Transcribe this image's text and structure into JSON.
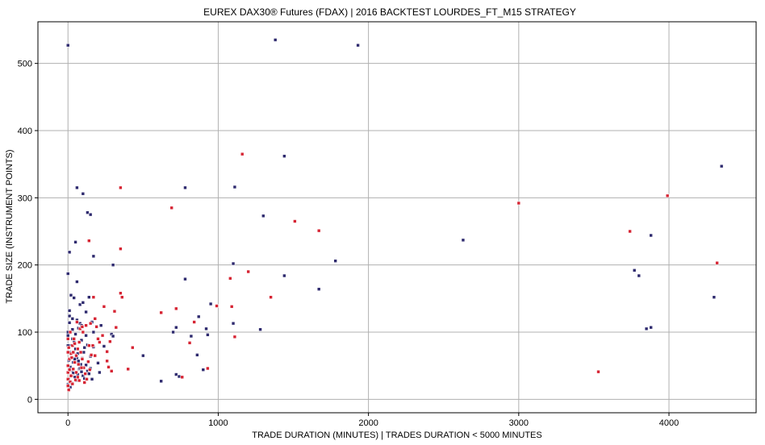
{
  "chart_data": {
    "type": "scatter",
    "title": "EUREX DAX30® Futures (FDAX) | 2016 BACKTEST LOURDES_FT_M15 STRATEGY",
    "xlabel": "TRADE DURATION (MINUTES) | TRADES DURATION < 5000 MINUTES",
    "ylabel": "TRADE SIZE (INSTRUMENT POINTS)",
    "xlim": [
      -200,
      4580
    ],
    "ylim": [
      -20,
      562
    ],
    "xticks": [
      0,
      1000,
      2000,
      3000,
      4000
    ],
    "yticks": [
      0,
      100,
      200,
      300,
      400,
      500
    ],
    "grid": true,
    "colors": {
      "series_a": "#2e2a6e",
      "series_b": "#d62433"
    },
    "series": [
      {
        "color": "#2e2a6e",
        "points": [
          [
            0,
            527
          ],
          [
            1380,
            535
          ],
          [
            1930,
            527
          ],
          [
            1440,
            362
          ],
          [
            60,
            315
          ],
          [
            100,
            306
          ],
          [
            780,
            315
          ],
          [
            1110,
            316
          ],
          [
            1300,
            273
          ],
          [
            4350,
            347
          ],
          [
            2630,
            237
          ],
          [
            3880,
            244
          ],
          [
            3770,
            192
          ],
          [
            3800,
            184
          ],
          [
            4300,
            152
          ],
          [
            3850,
            105
          ],
          [
            3880,
            107
          ],
          [
            10,
            219
          ],
          [
            50,
            234
          ],
          [
            170,
            213
          ],
          [
            130,
            278
          ],
          [
            150,
            275
          ],
          [
            300,
            200
          ],
          [
            1100,
            202
          ],
          [
            1440,
            184
          ],
          [
            1780,
            206
          ],
          [
            1670,
            164
          ],
          [
            780,
            179
          ],
          [
            60,
            175
          ],
          [
            0,
            187
          ],
          [
            20,
            155
          ],
          [
            40,
            151
          ],
          [
            80,
            141
          ],
          [
            100,
            144
          ],
          [
            140,
            152
          ],
          [
            120,
            130
          ],
          [
            10,
            132
          ],
          [
            950,
            142
          ],
          [
            920,
            105
          ],
          [
            930,
            96
          ],
          [
            870,
            123
          ],
          [
            860,
            66
          ],
          [
            700,
            100
          ],
          [
            720,
            107
          ],
          [
            820,
            94
          ],
          [
            1280,
            104
          ],
          [
            1100,
            113
          ],
          [
            1200,
            190
          ],
          [
            500,
            65
          ],
          [
            290,
            97
          ],
          [
            300,
            94
          ],
          [
            240,
            79
          ],
          [
            220,
            110
          ],
          [
            160,
            115
          ],
          [
            10,
            114
          ],
          [
            30,
            104
          ],
          [
            50,
            97
          ],
          [
            70,
            106
          ],
          [
            80,
            113
          ],
          [
            90,
            88
          ],
          [
            110,
            77
          ],
          [
            130,
            81
          ],
          [
            150,
            64
          ],
          [
            170,
            78
          ],
          [
            620,
            27
          ],
          [
            720,
            37
          ],
          [
            740,
            34
          ],
          [
            900,
            44
          ],
          [
            5,
            58
          ],
          [
            15,
            48
          ],
          [
            25,
            43
          ],
          [
            35,
            39
          ],
          [
            45,
            33
          ],
          [
            55,
            28
          ],
          [
            65,
            37
          ],
          [
            75,
            45
          ],
          [
            85,
            52
          ],
          [
            95,
            61
          ],
          [
            105,
            70
          ],
          [
            10,
            70
          ],
          [
            20,
            80
          ],
          [
            30,
            90
          ],
          [
            40,
            85
          ],
          [
            50,
            75
          ],
          [
            60,
            62
          ],
          [
            70,
            57
          ],
          [
            80,
            46
          ],
          [
            90,
            41
          ],
          [
            100,
            35
          ],
          [
            110,
            31
          ],
          [
            120,
            51
          ],
          [
            130,
            42
          ],
          [
            140,
            38
          ],
          [
            150,
            46
          ],
          [
            160,
            30
          ],
          [
            0,
            22
          ],
          [
            5,
            30
          ],
          [
            15,
            18
          ],
          [
            25,
            24
          ],
          [
            35,
            55
          ],
          [
            45,
            60
          ],
          [
            55,
            66
          ],
          [
            65,
            68
          ],
          [
            0,
            80
          ],
          [
            0,
            95
          ],
          [
            0,
            100
          ],
          [
            10,
            124
          ],
          [
            30,
            120
          ],
          [
            60,
            118
          ],
          [
            90,
            110
          ],
          [
            100,
            100
          ],
          [
            120,
            95
          ],
          [
            170,
            100
          ],
          [
            200,
            54
          ],
          [
            210,
            40
          ]
        ]
      },
      {
        "color": "#d62433",
        "points": [
          [
            1160,
            365
          ],
          [
            1510,
            265
          ],
          [
            1670,
            251
          ],
          [
            3000,
            292
          ],
          [
            3990,
            303
          ],
          [
            4320,
            203
          ],
          [
            3740,
            250
          ],
          [
            3530,
            41
          ],
          [
            350,
            315
          ],
          [
            350,
            224
          ],
          [
            690,
            285
          ],
          [
            140,
            236
          ],
          [
            1200,
            190
          ],
          [
            1080,
            180
          ],
          [
            1350,
            152
          ],
          [
            350,
            158
          ],
          [
            360,
            152
          ],
          [
            310,
            131
          ],
          [
            620,
            129
          ],
          [
            720,
            135
          ],
          [
            990,
            139
          ],
          [
            1090,
            138
          ],
          [
            1110,
            93
          ],
          [
            840,
            115
          ],
          [
            810,
            84
          ],
          [
            930,
            46
          ],
          [
            760,
            33
          ],
          [
            430,
            77
          ],
          [
            240,
            138
          ],
          [
            180,
            120
          ],
          [
            170,
            152
          ],
          [
            150,
            113
          ],
          [
            120,
            110
          ],
          [
            100,
            100
          ],
          [
            80,
            105
          ],
          [
            60,
            115
          ],
          [
            40,
            90
          ],
          [
            30,
            80
          ],
          [
            20,
            68
          ],
          [
            10,
            60
          ],
          [
            0,
            50
          ],
          [
            0,
            40
          ],
          [
            0,
            30
          ],
          [
            0,
            20
          ],
          [
            5,
            14
          ],
          [
            15,
            26
          ],
          [
            25,
            35
          ],
          [
            35,
            45
          ],
          [
            45,
            55
          ],
          [
            55,
            65
          ],
          [
            65,
            75
          ],
          [
            75,
            85
          ],
          [
            85,
            70
          ],
          [
            95,
            60
          ],
          [
            105,
            47
          ],
          [
            115,
            38
          ],
          [
            125,
            30
          ],
          [
            135,
            56
          ],
          [
            145,
            44
          ],
          [
            155,
            66
          ],
          [
            165,
            80
          ],
          [
            190,
            108
          ],
          [
            200,
            90
          ],
          [
            210,
            85
          ],
          [
            230,
            95
          ],
          [
            260,
            57
          ],
          [
            280,
            86
          ],
          [
            290,
            42
          ],
          [
            320,
            107
          ],
          [
            400,
            45
          ],
          [
            110,
            25
          ],
          [
            90,
            47
          ],
          [
            70,
            52
          ],
          [
            50,
            29
          ],
          [
            30,
            23
          ],
          [
            20,
            35
          ],
          [
            10,
            44
          ],
          [
            0,
            70
          ],
          [
            0,
            90
          ],
          [
            5,
            77
          ],
          [
            15,
            100
          ],
          [
            25,
            62
          ],
          [
            35,
            70
          ],
          [
            45,
            83
          ],
          [
            55,
            40
          ],
          [
            65,
            33
          ],
          [
            75,
            28
          ],
          [
            95,
            108
          ],
          [
            180,
            65
          ],
          [
            140,
            80
          ],
          [
            260,
            71
          ],
          [
            270,
            48
          ]
        ]
      }
    ]
  }
}
